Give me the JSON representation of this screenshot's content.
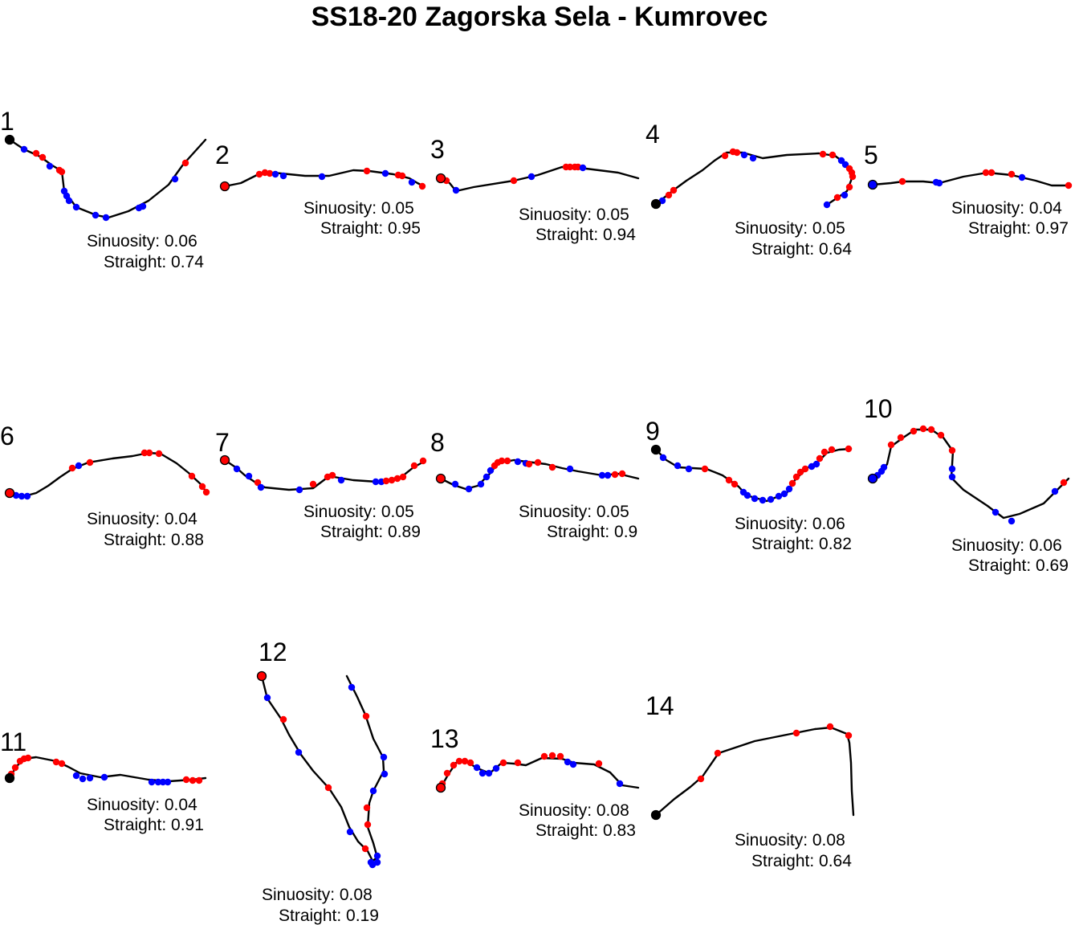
{
  "title": "SS18-20 Zagorska Sela - Kumrovec",
  "colors": {
    "line": "#000000",
    "red": "#ff0000",
    "blue": "#0000ff",
    "black": "#000000"
  },
  "stages": [
    {
      "id": "1",
      "sinuosity_label": "Sinuosity: 0.06",
      "straight_label": "Straight: 0.74"
    },
    {
      "id": "2",
      "sinuosity_label": "Sinuosity: 0.05",
      "straight_label": "Straight: 0.95"
    },
    {
      "id": "3",
      "sinuosity_label": "Sinuosity: 0.05",
      "straight_label": "Straight: 0.94"
    },
    {
      "id": "4",
      "sinuosity_label": "Sinuosity: 0.05",
      "straight_label": "Straight: 0.64"
    },
    {
      "id": "5",
      "sinuosity_label": "Sinuosity: 0.04",
      "straight_label": "Straight: 0.97"
    },
    {
      "id": "6",
      "sinuosity_label": "Sinuosity: 0.04",
      "straight_label": "Straight: 0.88"
    },
    {
      "id": "7",
      "sinuosity_label": "Sinuosity: 0.05",
      "straight_label": "Straight: 0.89"
    },
    {
      "id": "8",
      "sinuosity_label": "Sinuosity: 0.05",
      "straight_label": "Straight: 0.9"
    },
    {
      "id": "9",
      "sinuosity_label": "Sinuosity: 0.06",
      "straight_label": "Straight: 0.82"
    },
    {
      "id": "10",
      "sinuosity_label": "Sinuosity: 0.06",
      "straight_label": "Straight: 0.69"
    },
    {
      "id": "11",
      "sinuosity_label": "Sinuosity: 0.04",
      "straight_label": "Straight: 0.91"
    },
    {
      "id": "12",
      "sinuosity_label": "Sinuosity: 0.08",
      "straight_label": "Straight: 0.19"
    },
    {
      "id": "13",
      "sinuosity_label": "Sinuosity: 0.08",
      "straight_label": "Straight: 0.83"
    },
    {
      "id": "14",
      "sinuosity_label": "Sinuosity: 0.08",
      "straight_label": "Straight: 0.64"
    }
  ]
}
